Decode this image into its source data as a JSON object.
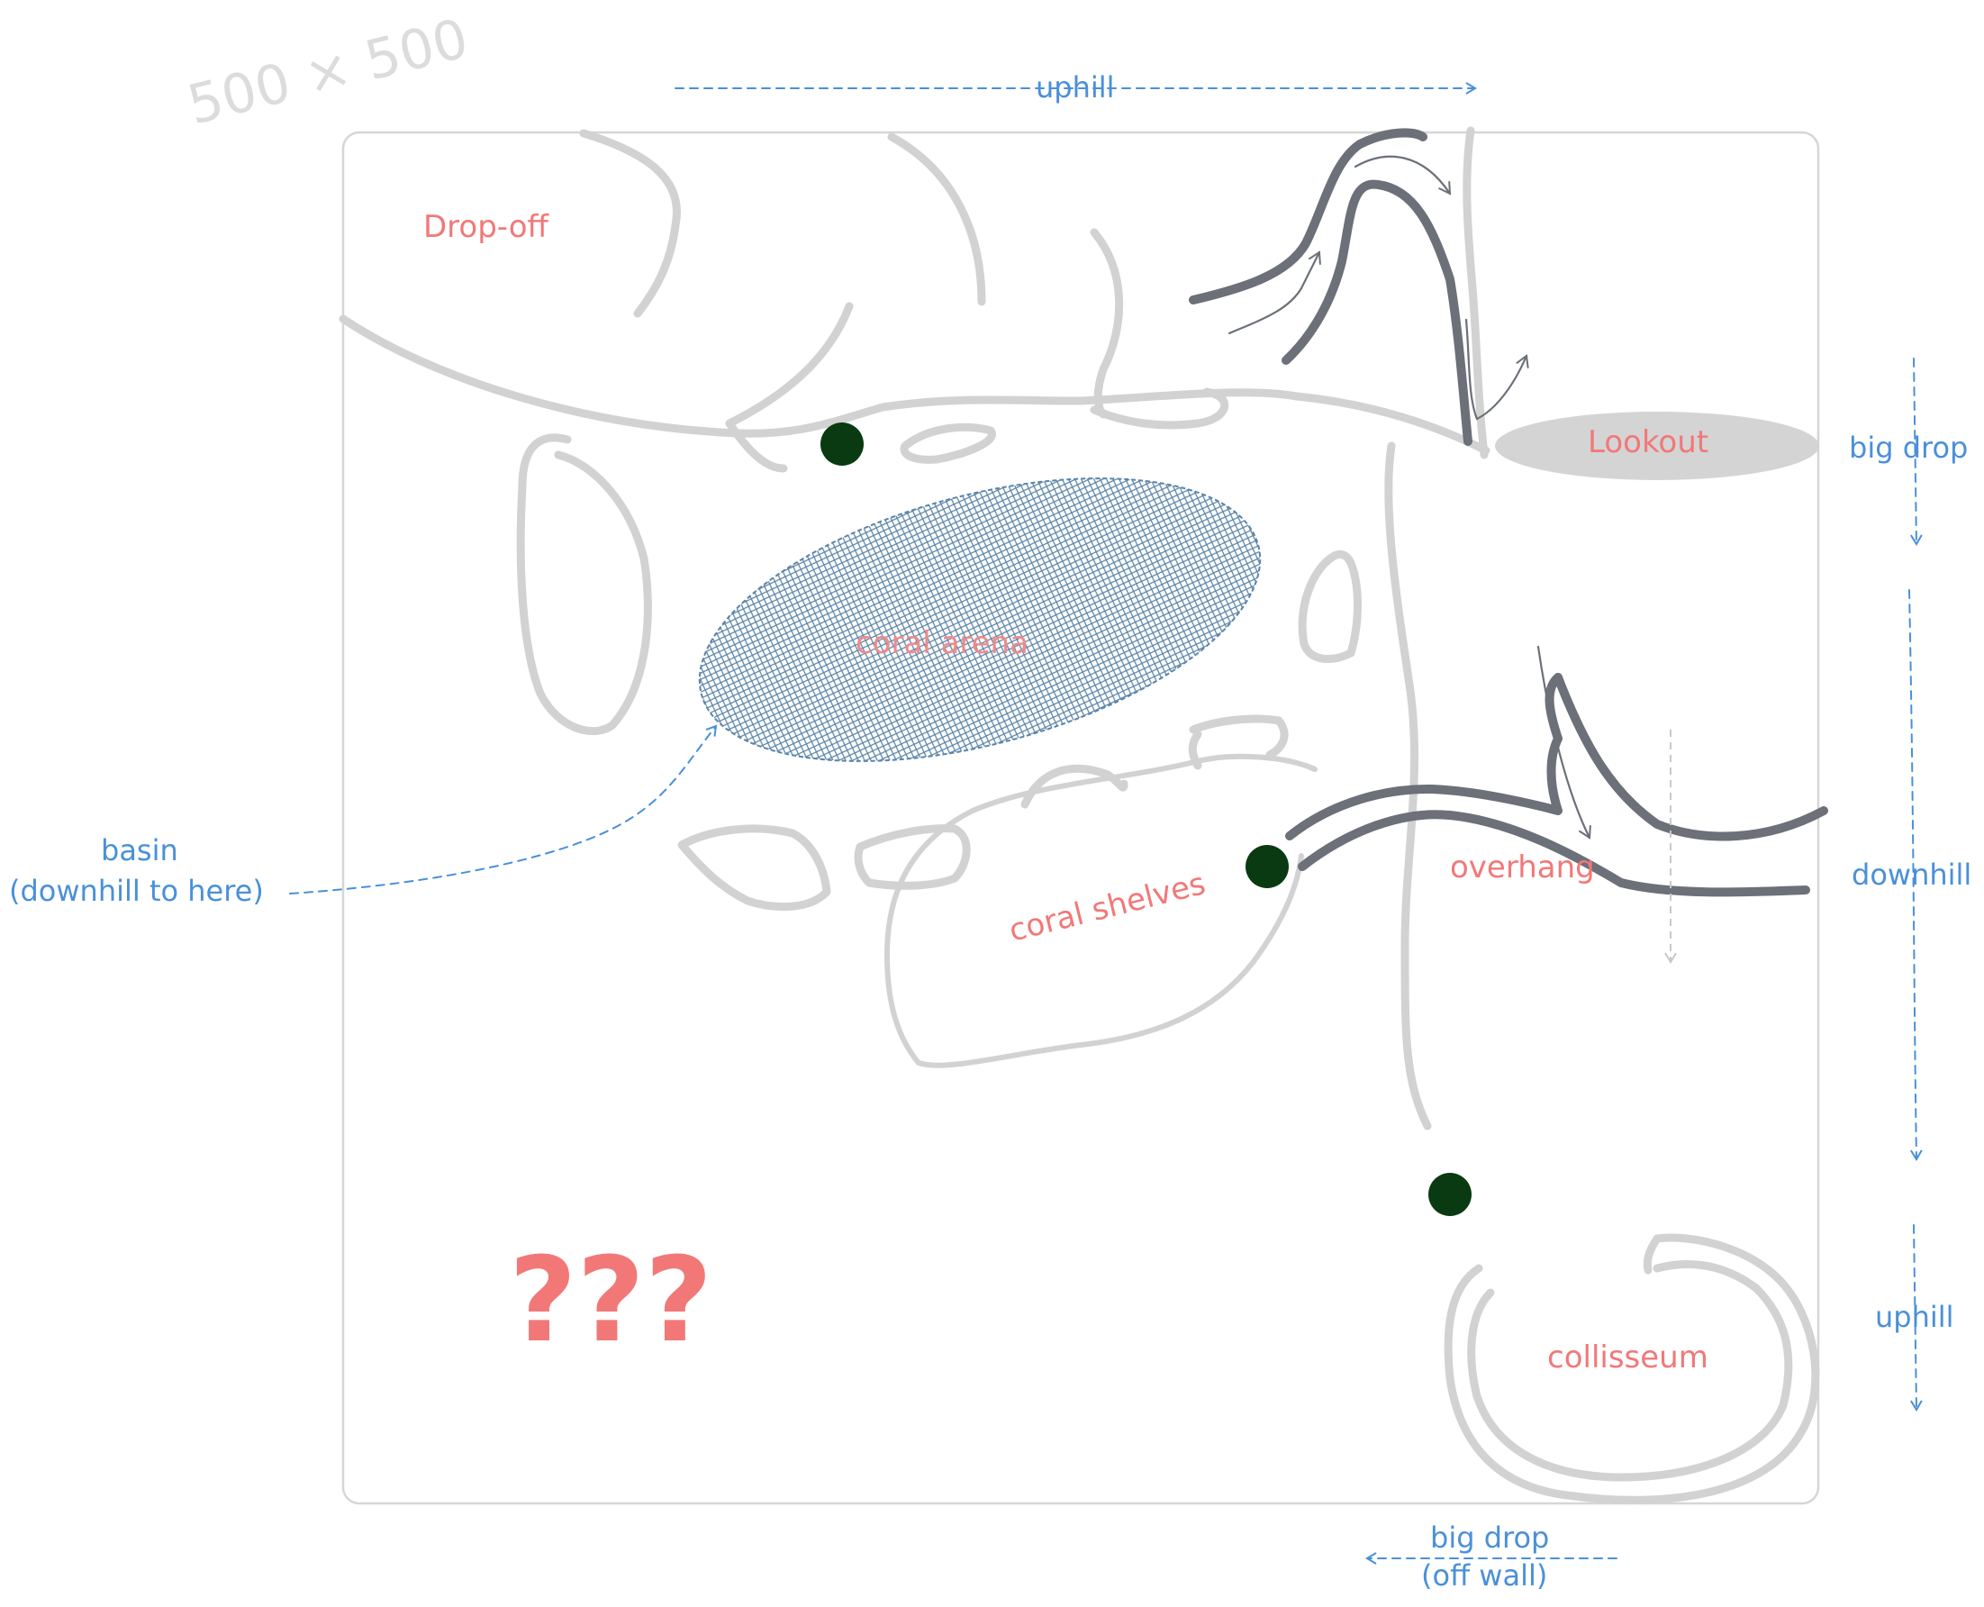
{
  "dimension_label": "500 × 500",
  "labels": {
    "drop_off": "Drop-off",
    "lookout": "Lookout",
    "coral_arena": "coral arena",
    "coral_shelves": "coral shelves",
    "overhang": "overhang",
    "collisseum": "collisseum",
    "unknown": "???"
  },
  "annotations": {
    "uphill_top": "uphill",
    "big_drop_right": "big drop",
    "downhill_right": "downhill",
    "uphill_right": "uphill",
    "basin_line1": "basin",
    "basin_line2": "(downhill to here)",
    "big_drop_bottom_line1": "big drop",
    "big_drop_bottom_line2": "(off wall)"
  },
  "colors": {
    "terrain": "#d2d2d2",
    "path": "#6b7079",
    "label": "#f27878",
    "annotation": "#4a90d9",
    "marker": "#0a3a12",
    "hatch": "#5b84a8"
  }
}
